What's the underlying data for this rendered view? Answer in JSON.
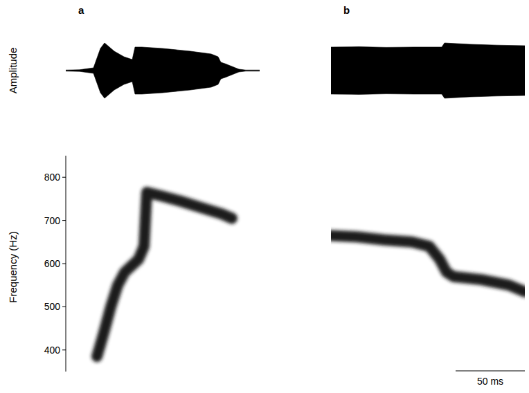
{
  "chart_data": [
    {
      "type": "line",
      "title": "a",
      "y_label": "Frequency (Hz)",
      "amplitude_label": "Amplitude",
      "color": "#1a1a1a",
      "xlim": [
        0,
        140
      ],
      "ylim": [
        350,
        850
      ],
      "yticks": [
        400,
        500,
        600,
        700,
        800
      ],
      "x": [
        22.5,
        27.5,
        32.5,
        37.5,
        42.5,
        47.5,
        52.5,
        56.5,
        58.5,
        67.5,
        82.5,
        97.5,
        112.5,
        120
      ],
      "values": [
        385,
        440,
        500,
        550,
        580,
        595,
        610,
        640,
        765,
        758,
        745,
        730,
        715,
        705
      ],
      "amplitude": {
        "x": [
          0,
          10,
          20,
          25,
          28,
          35,
          42,
          48,
          50,
          55,
          70,
          90,
          105,
          110,
          112,
          115,
          120,
          125,
          130,
          140
        ],
        "values": [
          0.02,
          0.03,
          0.1,
          0.8,
          1.0,
          0.7,
          0.5,
          0.4,
          0.85,
          0.85,
          0.8,
          0.7,
          0.6,
          0.5,
          0.3,
          0.25,
          0.15,
          0.05,
          0.02,
          0.02
        ]
      }
    },
    {
      "type": "line",
      "title": "b",
      "tick_labels": false,
      "color": "#1a1a1a",
      "xlim": [
        0,
        140
      ],
      "ylim": [
        350,
        850
      ],
      "x": [
        0,
        18.5,
        38.5,
        58.5,
        71,
        78.5,
        83.5,
        88.5,
        108.5,
        128.5,
        140
      ],
      "values": [
        665,
        662,
        655,
        650,
        640,
        610,
        580,
        570,
        563,
        550,
        535
      ],
      "amplitude": {
        "x": [
          0,
          20,
          40,
          60,
          80,
          82,
          100,
          120,
          140
        ],
        "values": [
          0.85,
          0.86,
          0.84,
          0.85,
          0.85,
          1.0,
          0.95,
          0.92,
          0.9
        ]
      },
      "scale_bar": {
        "value": 50,
        "label": "50 ms"
      }
    }
  ]
}
